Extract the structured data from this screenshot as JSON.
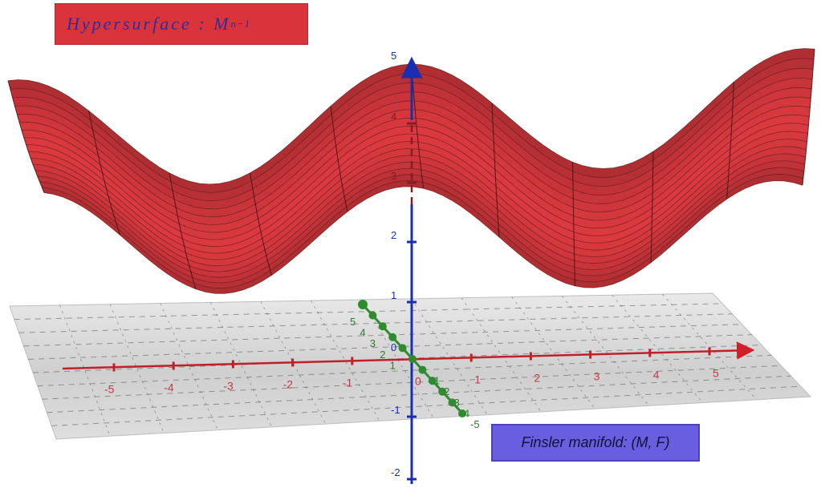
{
  "title": {
    "text": "Hypersurface : M",
    "superscript": "n−1"
  },
  "caption": "Finsler manifold: (M, F)",
  "axes": {
    "x_ticks": [
      "-5",
      "-4",
      "-3",
      "-2",
      "-1",
      "0",
      "1",
      "2",
      "3",
      "4",
      "5"
    ],
    "y_ticks": [
      "5",
      "4",
      "3",
      "2",
      "1",
      "0",
      "-1",
      "-2",
      "-3",
      "-4",
      "-5"
    ],
    "z_ticks": [
      "5",
      "4",
      "3",
      "2",
      "1",
      "0",
      "-1",
      "-2"
    ]
  },
  "colors": {
    "surface": "#d9393f",
    "surface_mesh": "#5a1416",
    "plane": "#cfcfcf",
    "x_axis": "#c0202a",
    "y_axis": "#2e8b2e",
    "z_axis": "#1a2fb0",
    "title_bg": "#d9333b",
    "caption_bg": "#6a5ee0"
  }
}
